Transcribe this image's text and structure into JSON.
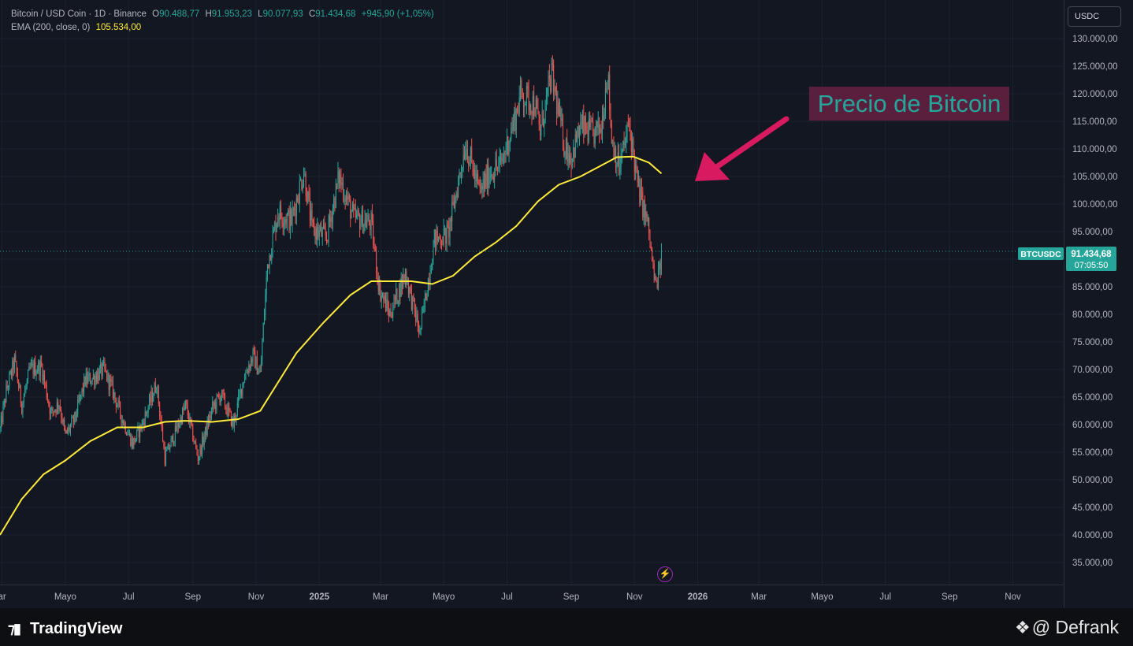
{
  "legend": {
    "title": "Bitcoin / USD Coin · 1D · Binance",
    "open_label": "O",
    "open": "90.488,77",
    "high_label": "H",
    "high": "91.953,23",
    "low_label": "L",
    "low": "90.077,93",
    "close_label": "C",
    "close": "91.434,68",
    "change": "+945,90 (+1,05%)",
    "ema_label": "EMA (200, close, 0)",
    "ema_value": "105.534,00"
  },
  "currency": "USDC",
  "annotation": "Precio de Bitcoin",
  "current_price": {
    "symbol": "BTCUSDC",
    "price": "91.434,68",
    "countdown": "07:05:50"
  },
  "footer": {
    "logo": "TradingView",
    "credit": "@ Defrank"
  },
  "colors": {
    "up": "#26a69a",
    "down": "#ef5350",
    "ema": "#ffeb3b",
    "arrow": "#d81b60",
    "background": "#131722"
  },
  "icons": {
    "lightning": "lightning-icon",
    "binance": "diamond-icon"
  },
  "chart_data": {
    "type": "candlestick",
    "symbol": "BTCUSDC",
    "timeframe": "1D",
    "y_axis": {
      "ticks": [
        35000,
        40000,
        45000,
        50000,
        55000,
        60000,
        65000,
        70000,
        75000,
        80000,
        85000,
        90000,
        95000,
        100000,
        105000,
        110000,
        115000,
        120000,
        125000,
        130000
      ],
      "tick_labels": [
        "35.000,00",
        "40.000,00",
        "45.000,00",
        "50.000,00",
        "55.000,00",
        "60.000,00",
        "65.000,00",
        "70.000,00",
        "75.000,00",
        "80.000,00",
        "85.000,00",
        "90.000,00",
        "95.000,00",
        "100.000,00",
        "105.000,00",
        "110.000,00",
        "115.000,00",
        "120.000,00",
        "125.000,00",
        "130.000,00"
      ],
      "range": [
        31000,
        137000
      ]
    },
    "x_axis": {
      "ticks": [
        "2024-03",
        "2024-05",
        "2024-07",
        "2024-09",
        "2024-11",
        "2025-01",
        "2025-03",
        "2025-05",
        "2025-07",
        "2025-09",
        "2025-11",
        "2026-01",
        "2026-03",
        "2026-05",
        "2026-07",
        "2026-09",
        "2026-11"
      ],
      "tick_labels": [
        "ar",
        "Mayo",
        "Jul",
        "Sep",
        "Nov",
        "2025",
        "Mar",
        "Mayo",
        "Jul",
        "Sep",
        "Nov",
        "2026",
        "Mar",
        "Mayo",
        "Jul",
        "Sep",
        "Nov"
      ],
      "range": [
        "2024-02-28",
        "2026-12-20"
      ]
    },
    "price_path": [
      [
        "2024-02-28",
        59000
      ],
      [
        "2024-03-05",
        66000
      ],
      [
        "2024-03-13",
        71500
      ],
      [
        "2024-03-20",
        63500
      ],
      [
        "2024-03-28",
        70000
      ],
      [
        "2024-04-08",
        70500
      ],
      [
        "2024-04-17",
        62000
      ],
      [
        "2024-04-25",
        64000
      ],
      [
        "2024-05-01",
        58000
      ],
      [
        "2024-05-10",
        61000
      ],
      [
        "2024-05-20",
        68000
      ],
      [
        "2024-05-28",
        68500
      ],
      [
        "2024-06-07",
        70000
      ],
      [
        "2024-06-15",
        66500
      ],
      [
        "2024-06-25",
        61000
      ],
      [
        "2024-07-05",
        56500
      ],
      [
        "2024-07-14",
        60000
      ],
      [
        "2024-07-28",
        67500
      ],
      [
        "2024-08-05",
        54000
      ],
      [
        "2024-08-15",
        58500
      ],
      [
        "2024-08-25",
        63500
      ],
      [
        "2024-09-06",
        54000
      ],
      [
        "2024-09-20",
        63000
      ],
      [
        "2024-09-28",
        65500
      ],
      [
        "2024-10-10",
        60000
      ],
      [
        "2024-10-20",
        68500
      ],
      [
        "2024-10-29",
        72500
      ],
      [
        "2024-11-05",
        69000
      ],
      [
        "2024-11-12",
        89000
      ],
      [
        "2024-11-22",
        98500
      ],
      [
        "2024-12-05",
        97000
      ],
      [
        "2024-12-17",
        106000
      ],
      [
        "2024-12-25",
        95500
      ],
      [
        "2025-01-08",
        94000
      ],
      [
        "2025-01-20",
        105000
      ],
      [
        "2025-02-03",
        97500
      ],
      [
        "2025-02-20",
        96500
      ],
      [
        "2025-02-28",
        84500
      ],
      [
        "2025-03-10",
        80000
      ],
      [
        "2025-03-25",
        87500
      ],
      [
        "2025-04-08",
        76500
      ],
      [
        "2025-04-22",
        93500
      ],
      [
        "2025-05-05",
        94500
      ],
      [
        "2025-05-15",
        104000
      ],
      [
        "2025-05-22",
        111000
      ],
      [
        "2025-06-05",
        102000
      ],
      [
        "2025-06-15",
        106000
      ],
      [
        "2025-06-25",
        107000
      ],
      [
        "2025-07-10",
        116500
      ],
      [
        "2025-07-14",
        120000
      ],
      [
        "2025-07-28",
        118000
      ],
      [
        "2025-08-02",
        113000
      ],
      [
        "2025-08-13",
        123500
      ],
      [
        "2025-08-25",
        111000
      ],
      [
        "2025-09-01",
        108500
      ],
      [
        "2025-09-10",
        114000
      ],
      [
        "2025-09-22",
        112500
      ],
      [
        "2025-09-30",
        114000
      ],
      [
        "2025-10-06",
        124500
      ],
      [
        "2025-10-10",
        112000
      ],
      [
        "2025-10-17",
        106500
      ],
      [
        "2025-10-27",
        114500
      ],
      [
        "2025-11-04",
        103500
      ],
      [
        "2025-11-14",
        96000
      ],
      [
        "2025-11-21",
        85000
      ],
      [
        "2025-11-25",
        87500
      ],
      [
        "2025-11-27",
        91434.68
      ]
    ],
    "ema_200": [
      [
        "2024-02-28",
        40000
      ],
      [
        "2024-03-20",
        46500
      ],
      [
        "2024-04-10",
        51000
      ],
      [
        "2024-05-01",
        53500
      ],
      [
        "2024-05-25",
        57000
      ],
      [
        "2024-06-20",
        59500
      ],
      [
        "2024-07-15",
        59500
      ],
      [
        "2024-08-05",
        60500
      ],
      [
        "2024-08-25",
        60700
      ],
      [
        "2024-09-20",
        60500
      ],
      [
        "2024-10-15",
        61000
      ],
      [
        "2024-11-05",
        62500
      ],
      [
        "2024-11-20",
        67000
      ],
      [
        "2024-12-10",
        73000
      ],
      [
        "2025-01-05",
        78500
      ],
      [
        "2025-01-31",
        83500
      ],
      [
        "2025-02-20",
        86000
      ],
      [
        "2025-03-10",
        86000
      ],
      [
        "2025-03-31",
        86000
      ],
      [
        "2025-04-20",
        85500
      ],
      [
        "2025-05-10",
        87000
      ],
      [
        "2025-05-31",
        90500
      ],
      [
        "2025-06-20",
        93000
      ],
      [
        "2025-07-10",
        96000
      ],
      [
        "2025-07-31",
        100500
      ],
      [
        "2025-08-20",
        103500
      ],
      [
        "2025-09-10",
        105000
      ],
      [
        "2025-09-30",
        107000
      ],
      [
        "2025-10-15",
        108500
      ],
      [
        "2025-10-31",
        108600
      ],
      [
        "2025-11-15",
        107500
      ],
      [
        "2025-11-27",
        105534
      ]
    ],
    "last_price": 91434.68,
    "ema_last": 105534,
    "grid": true,
    "legend_position": "top-left"
  }
}
